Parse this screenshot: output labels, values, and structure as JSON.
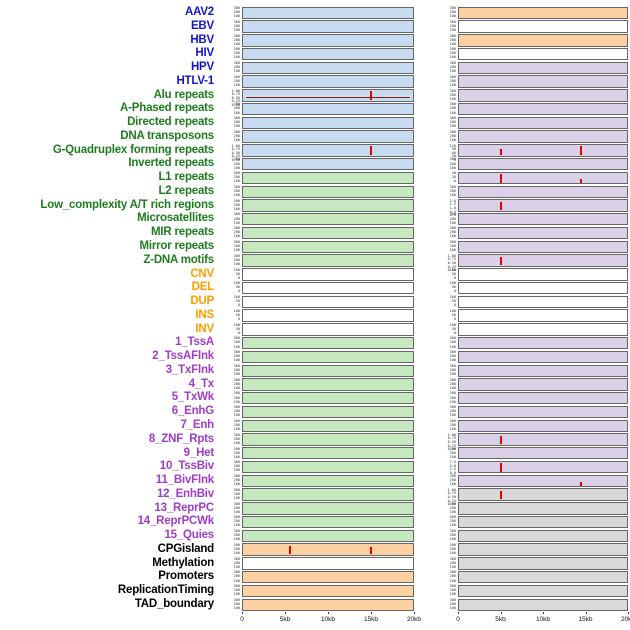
{
  "palette": {
    "label_colors": {
      "virus": "#1414cc",
      "repeat": "#1e7d1e",
      "sv": "#ff9d00",
      "chromatin": "#a03cc8",
      "other": "#000000"
    },
    "panel_colors": {
      "blue": "#c6dbef",
      "green": "#c7e9c0",
      "orange": "#fdd0a2",
      "purple": "#dcd0e8",
      "gray": "#d9d9d9",
      "white": "#ffffff"
    },
    "spike_color": "#e60000",
    "baseline_color": "#8b1a1a"
  },
  "chart_data": {
    "type": "line",
    "description": "Multi-track genomic feature density plot: 44 feature rows, two panels per row (left and right region), x axis 0-20kb. Red vertical spikes mark signal peaks.",
    "x_axis": {
      "labels": [
        "0",
        "5kb",
        "10kb",
        "15kb",
        "20kb"
      ],
      "fractions": [
        0,
        0.25,
        0.5,
        0.75,
        1
      ],
      "range_kb": [
        0,
        20
      ]
    },
    "tick_presets": {
      "c": [
        "300",
        "200",
        "100"
      ],
      "r": [
        "1.00",
        "0.75",
        "0.50",
        "0.25",
        "0.00"
      ],
      "s": [
        "100",
        "50",
        "0"
      ],
      "g": [
        "120",
        "90",
        "60",
        "30",
        "0"
      ],
      "l": [
        "40",
        "20",
        "0"
      ],
      "lc": [
        "2.0",
        "1.5",
        "1.0",
        "0.5",
        "0.0"
      ],
      "tb": [
        "7.5",
        "5.0",
        "2.5",
        "0.0"
      ]
    },
    "rows": [
      {
        "label": "AAV2",
        "group": "virus",
        "left": {
          "bg": "blue",
          "ticks": "c",
          "spikes": []
        },
        "right": {
          "bg": "orange",
          "ticks": "c",
          "spikes": []
        }
      },
      {
        "label": "EBV",
        "group": "virus",
        "left": {
          "bg": "blue",
          "ticks": "c",
          "spikes": []
        },
        "right": {
          "bg": "white",
          "ticks": "c",
          "spikes": []
        }
      },
      {
        "label": "HBV",
        "group": "virus",
        "left": {
          "bg": "blue",
          "ticks": "c",
          "spikes": []
        },
        "right": {
          "bg": "orange",
          "ticks": "c",
          "spikes": []
        }
      },
      {
        "label": "HIV",
        "group": "virus",
        "left": {
          "bg": "blue",
          "ticks": "c",
          "spikes": []
        },
        "right": {
          "bg": "white",
          "ticks": "c",
          "spikes": []
        }
      },
      {
        "label": "HPV",
        "group": "virus",
        "left": {
          "bg": "blue",
          "ticks": "c",
          "spikes": []
        },
        "right": {
          "bg": "purple",
          "ticks": "c",
          "spikes": []
        }
      },
      {
        "label": "HTLV-1",
        "group": "virus",
        "left": {
          "bg": "blue",
          "ticks": "c",
          "spikes": []
        },
        "right": {
          "bg": "purple",
          "ticks": "c",
          "spikes": []
        }
      },
      {
        "label": "Alu repeats",
        "group": "repeat",
        "left": {
          "bg": "blue",
          "ticks": "r",
          "spikes": [
            {
              "kb": 15,
              "h": 0.9
            }
          ],
          "baseline": true
        },
        "right": {
          "bg": "purple",
          "ticks": "c",
          "spikes": []
        }
      },
      {
        "label": "A-Phased repeats",
        "group": "repeat",
        "left": {
          "bg": "blue",
          "ticks": "c",
          "spikes": []
        },
        "right": {
          "bg": "purple",
          "ticks": "c",
          "spikes": []
        }
      },
      {
        "label": "Directed repeats",
        "group": "repeat",
        "left": {
          "bg": "blue",
          "ticks": "c",
          "spikes": []
        },
        "right": {
          "bg": "purple",
          "ticks": "c",
          "spikes": []
        }
      },
      {
        "label": "DNA transposons",
        "group": "repeat",
        "left": {
          "bg": "blue",
          "ticks": "c",
          "spikes": []
        },
        "right": {
          "bg": "purple",
          "ticks": "c",
          "spikes": []
        }
      },
      {
        "label": "G-Quadruplex forming repeats",
        "group": "repeat",
        "left": {
          "bg": "blue",
          "ticks": "r",
          "spikes": [
            {
              "kb": 15,
              "h": 0.85
            }
          ]
        },
        "right": {
          "bg": "purple",
          "ticks": "g",
          "spikes": [
            {
              "kb": 5,
              "h": 0.6
            },
            {
              "kb": 14.5,
              "h": 0.9
            }
          ]
        }
      },
      {
        "label": "Inverted repeats",
        "group": "repeat",
        "left": {
          "bg": "blue",
          "ticks": "c",
          "spikes": []
        },
        "right": {
          "bg": "purple",
          "ticks": "c",
          "spikes": []
        }
      },
      {
        "label": "L1 repeats",
        "group": "repeat",
        "left": {
          "bg": "green",
          "ticks": "c",
          "spikes": []
        },
        "right": {
          "bg": "purple",
          "ticks": "l",
          "spikes": [
            {
              "kb": 5,
              "h": 0.85
            },
            {
              "kb": 14.5,
              "h": 0.35
            }
          ]
        }
      },
      {
        "label": "L2 repeats",
        "group": "repeat",
        "left": {
          "bg": "green",
          "ticks": "c",
          "spikes": []
        },
        "right": {
          "bg": "purple",
          "ticks": "c",
          "spikes": []
        }
      },
      {
        "label": "Low_complexity A/T rich regions",
        "group": "repeat",
        "left": {
          "bg": "green",
          "ticks": "c",
          "spikes": []
        },
        "right": {
          "bg": "purple",
          "ticks": "lc",
          "spikes": [
            {
              "kb": 5,
              "h": 0.8
            }
          ]
        }
      },
      {
        "label": "Microsatellites",
        "group": "repeat",
        "left": {
          "bg": "green",
          "ticks": "c",
          "spikes": []
        },
        "right": {
          "bg": "purple",
          "ticks": "c",
          "spikes": []
        }
      },
      {
        "label": "MIR repeats",
        "group": "repeat",
        "left": {
          "bg": "green",
          "ticks": "c",
          "spikes": []
        },
        "right": {
          "bg": "purple",
          "ticks": "c",
          "spikes": []
        }
      },
      {
        "label": "Mirror repeats",
        "group": "repeat",
        "left": {
          "bg": "green",
          "ticks": "c",
          "spikes": []
        },
        "right": {
          "bg": "purple",
          "ticks": "c",
          "spikes": []
        }
      },
      {
        "label": "Z-DNA motifs",
        "group": "repeat",
        "left": {
          "bg": "green",
          "ticks": "c",
          "spikes": []
        },
        "right": {
          "bg": "purple",
          "ticks": "r",
          "spikes": [
            {
              "kb": 5,
              "h": 0.8
            }
          ]
        }
      },
      {
        "label": "CNV",
        "group": "sv",
        "left": {
          "bg": "white",
          "ticks": "s",
          "spikes": []
        },
        "right": {
          "bg": "white",
          "ticks": "s",
          "spikes": []
        }
      },
      {
        "label": "DEL",
        "group": "sv",
        "left": {
          "bg": "white",
          "ticks": "s",
          "spikes": []
        },
        "right": {
          "bg": "white",
          "ticks": "s",
          "spikes": []
        }
      },
      {
        "label": "DUP",
        "group": "sv",
        "left": {
          "bg": "white",
          "ticks": "s",
          "spikes": []
        },
        "right": {
          "bg": "white",
          "ticks": "s",
          "spikes": []
        }
      },
      {
        "label": "INS",
        "group": "sv",
        "left": {
          "bg": "white",
          "ticks": "s",
          "spikes": []
        },
        "right": {
          "bg": "white",
          "ticks": "s",
          "spikes": []
        }
      },
      {
        "label": "INV",
        "group": "sv",
        "left": {
          "bg": "white",
          "ticks": "s",
          "spikes": []
        },
        "right": {
          "bg": "white",
          "ticks": "s",
          "spikes": []
        }
      },
      {
        "label": "1_TssA",
        "group": "chromatin",
        "left": {
          "bg": "green",
          "ticks": "c",
          "spikes": []
        },
        "right": {
          "bg": "purple",
          "ticks": "c",
          "spikes": []
        }
      },
      {
        "label": "2_TssAFlnk",
        "group": "chromatin",
        "left": {
          "bg": "green",
          "ticks": "c",
          "spikes": []
        },
        "right": {
          "bg": "purple",
          "ticks": "c",
          "spikes": []
        }
      },
      {
        "label": "3_TxFlnk",
        "group": "chromatin",
        "left": {
          "bg": "green",
          "ticks": "c",
          "spikes": []
        },
        "right": {
          "bg": "purple",
          "ticks": "c",
          "spikes": []
        }
      },
      {
        "label": "4_Tx",
        "group": "chromatin",
        "left": {
          "bg": "green",
          "ticks": "c",
          "spikes": []
        },
        "right": {
          "bg": "purple",
          "ticks": "c",
          "spikes": []
        }
      },
      {
        "label": "5_TxWk",
        "group": "chromatin",
        "left": {
          "bg": "green",
          "ticks": "c",
          "spikes": []
        },
        "right": {
          "bg": "purple",
          "ticks": "c",
          "spikes": []
        }
      },
      {
        "label": "6_EnhG",
        "group": "chromatin",
        "left": {
          "bg": "green",
          "ticks": "c",
          "spikes": []
        },
        "right": {
          "bg": "purple",
          "ticks": "c",
          "spikes": []
        }
      },
      {
        "label": "7_Enh",
        "group": "chromatin",
        "left": {
          "bg": "green",
          "ticks": "c",
          "spikes": []
        },
        "right": {
          "bg": "purple",
          "ticks": "c",
          "spikes": []
        }
      },
      {
        "label": "8_ZNF_Rpts",
        "group": "chromatin",
        "left": {
          "bg": "green",
          "ticks": "c",
          "spikes": []
        },
        "right": {
          "bg": "purple",
          "ticks": "r",
          "spikes": [
            {
              "kb": 5,
              "h": 0.8
            }
          ]
        }
      },
      {
        "label": "9_Het",
        "group": "chromatin",
        "left": {
          "bg": "green",
          "ticks": "c",
          "spikes": []
        },
        "right": {
          "bg": "purple",
          "ticks": "c",
          "spikes": []
        }
      },
      {
        "label": "10_TssBiv",
        "group": "chromatin",
        "left": {
          "bg": "green",
          "ticks": "c",
          "spikes": []
        },
        "right": {
          "bg": "purple",
          "ticks": "tb",
          "spikes": [
            {
              "kb": 5,
              "h": 0.8
            }
          ]
        }
      },
      {
        "label": "11_BivFlnk",
        "group": "chromatin",
        "left": {
          "bg": "green",
          "ticks": "c",
          "spikes": []
        },
        "right": {
          "bg": "purple",
          "ticks": "c",
          "spikes": [
            {
              "kb": 14.5,
              "h": 0.35
            }
          ]
        }
      },
      {
        "label": "12_EnhBiv",
        "group": "chromatin",
        "left": {
          "bg": "green",
          "ticks": "c",
          "spikes": []
        },
        "right": {
          "bg": "gray",
          "ticks": "r",
          "spikes": [
            {
              "kb": 5,
              "h": 0.8
            }
          ]
        }
      },
      {
        "label": "13_ReprPC",
        "group": "chromatin",
        "left": {
          "bg": "green",
          "ticks": "c",
          "spikes": []
        },
        "right": {
          "bg": "gray",
          "ticks": "c",
          "spikes": []
        }
      },
      {
        "label": "14_ReprPCWk",
        "group": "chromatin",
        "left": {
          "bg": "green",
          "ticks": "c",
          "spikes": []
        },
        "right": {
          "bg": "gray",
          "ticks": "c",
          "spikes": []
        }
      },
      {
        "label": "15_Quies",
        "group": "chromatin",
        "left": {
          "bg": "green",
          "ticks": "c",
          "spikes": []
        },
        "right": {
          "bg": "gray",
          "ticks": "c",
          "spikes": []
        }
      },
      {
        "label": "CPGisland",
        "group": "other",
        "left": {
          "bg": "orange",
          "ticks": "c",
          "spikes": [
            {
              "kb": 5.5,
              "h": 0.8
            },
            {
              "kb": 15,
              "h": 0.75
            }
          ]
        },
        "right": {
          "bg": "gray",
          "ticks": "c",
          "spikes": []
        }
      },
      {
        "label": "Methylation",
        "group": "other",
        "left": {
          "bg": "white",
          "ticks": "c",
          "spikes": []
        },
        "right": {
          "bg": "gray",
          "ticks": "c",
          "spikes": []
        }
      },
      {
        "label": "Promoters",
        "group": "other",
        "left": {
          "bg": "orange",
          "ticks": "c",
          "spikes": []
        },
        "right": {
          "bg": "gray",
          "ticks": "c",
          "spikes": []
        }
      },
      {
        "label": "ReplicationTiming",
        "group": "other",
        "left": {
          "bg": "orange",
          "ticks": "c",
          "spikes": []
        },
        "right": {
          "bg": "gray",
          "ticks": "c",
          "spikes": []
        }
      },
      {
        "label": "TAD_boundary",
        "group": "other",
        "left": {
          "bg": "orange",
          "ticks": "c",
          "spikes": []
        },
        "right": {
          "bg": "gray",
          "ticks": "c",
          "spikes": []
        }
      }
    ]
  }
}
